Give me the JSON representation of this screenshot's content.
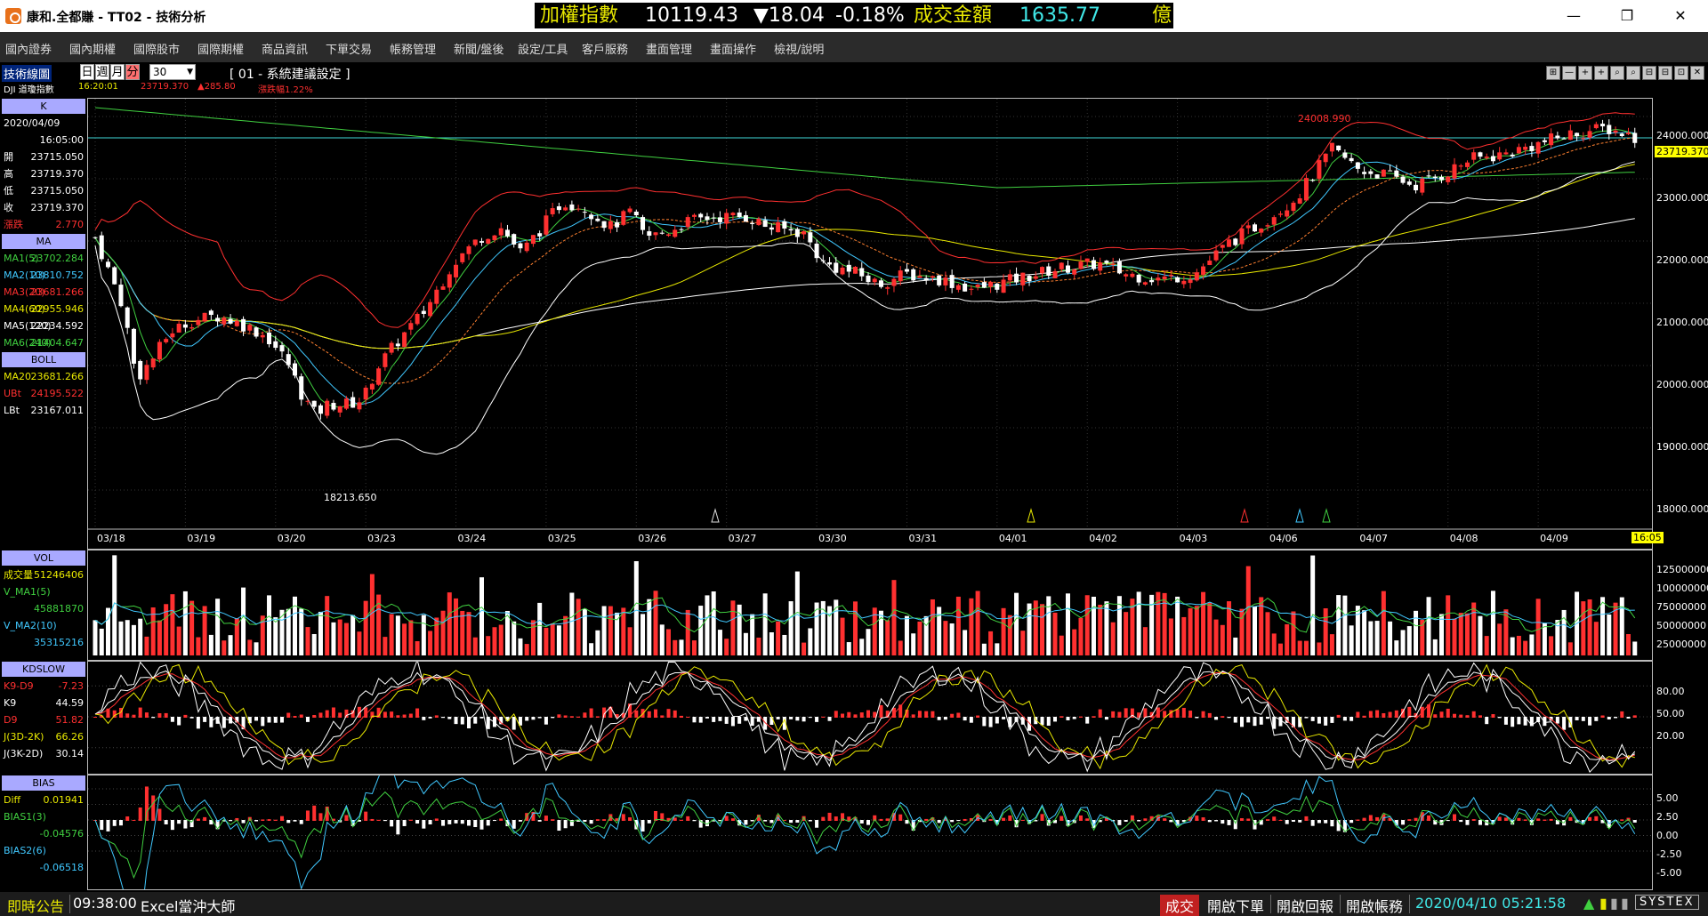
{
  "window": {
    "title": "康和.全都賺 - TT02 - 技術分析",
    "ticker_label": "加權指數",
    "ticker_value": "10119.43",
    "ticker_change": "▼18.04",
    "ticker_pct": "-0.18%",
    "turnover_label": "成交金額",
    "turnover_value": "1635.77",
    "turnover_unit": "億",
    "controls": [
      "—",
      "❐",
      "✕"
    ]
  },
  "menu": [
    "國內證券",
    "國內期權",
    "國際股市",
    "國際期權",
    "商品資訊",
    "下單交易",
    "帳務管理",
    "新聞/盤後",
    "設定/工具",
    "客戶服務",
    "畫面管理",
    "畫面操作",
    "檢視/說明"
  ],
  "toolbar": {
    "title": "技術線圖",
    "periods": [
      "日",
      "週",
      "月",
      "分"
    ],
    "active_period": "分",
    "interval": "30",
    "config": "[ 01 - 系統建議設定 ]",
    "symbol": "DJI 道瓊指數",
    "time": "16:20:01",
    "last": "23719.370",
    "change": "▲285.80",
    "change_pct": "漲跌幅1.22%",
    "tool_icons": [
      "⊞",
      "—",
      "+",
      "+",
      "⌕",
      "⌕",
      "⊟",
      "⊟",
      "⊡",
      "✕"
    ]
  },
  "side_k": {
    "header": "K",
    "date": "2020/04/09",
    "time": "16:05:00",
    "rows": [
      {
        "k": "開",
        "v": "23715.050",
        "color": "#ffffff"
      },
      {
        "k": "高",
        "v": "23719.370",
        "color": "#ffffff"
      },
      {
        "k": "低",
        "v": "23715.050",
        "color": "#ffffff"
      },
      {
        "k": "收",
        "v": "23719.370",
        "color": "#ffffff"
      },
      {
        "k": "漲跌",
        "v": "2.770",
        "color": "#ff3030"
      }
    ]
  },
  "side_ma": {
    "header": "MA",
    "rows": [
      {
        "k": "MA1(5)",
        "v": "23702.284",
        "color": "#40d040"
      },
      {
        "k": "MA2(10)",
        "v": "23810.752",
        "color": "#40c8ff"
      },
      {
        "k": "MA3(20)",
        "v": "23681.266",
        "color": "#ff3030"
      },
      {
        "k": "MA4(60)",
        "v": "22955.946",
        "color": "#e8e800"
      },
      {
        "k": "MA5(120)",
        "v": "22234.592",
        "color": "#ffffff"
      },
      {
        "k": "MA6(240)",
        "v": "21404.647",
        "color": "#40d040"
      }
    ]
  },
  "side_boll": {
    "header": "BOLL",
    "rows": [
      {
        "k": "MA20",
        "v": "23681.266",
        "color": "#e8e800"
      },
      {
        "k": "UBt",
        "v": "24195.522",
        "color": "#ff3030"
      },
      {
        "k": "LBt",
        "v": "23167.011",
        "color": "#ffffff"
      }
    ]
  },
  "side_vol": {
    "header": "VOL",
    "rows": [
      {
        "k": "成交量",
        "v": "51246406",
        "color": "#e8e800"
      },
      {
        "k": "V_MA1(5)",
        "v": "",
        "color": "#40d040"
      },
      {
        "k": "",
        "v": "45881870",
        "color": "#40d040"
      },
      {
        "k": "V_MA2(10)",
        "v": "",
        "color": "#40c8ff"
      },
      {
        "k": "",
        "v": "35315216",
        "color": "#40c8ff"
      }
    ]
  },
  "side_kd": {
    "header": "KDSLOW",
    "rows": [
      {
        "k": "K9-D9",
        "v": "-7.23",
        "color": "#ff3030"
      },
      {
        "k": "K9",
        "v": "44.59",
        "color": "#ffffff"
      },
      {
        "k": "D9",
        "v": "51.82",
        "color": "#ff3030"
      },
      {
        "k": "J(3D-2K)",
        "v": "66.26",
        "color": "#e8e800"
      },
      {
        "k": "J(3K-2D)",
        "v": "30.14",
        "color": "#ffffff"
      }
    ]
  },
  "side_bias": {
    "header": "BIAS",
    "rows": [
      {
        "k": "Diff",
        "v": "0.01941",
        "color": "#e8e800"
      },
      {
        "k": "BIAS1(3)",
        "v": "",
        "color": "#40d040"
      },
      {
        "k": "",
        "v": "-0.04576",
        "color": "#40d040"
      },
      {
        "k": "BIAS2(6)",
        "v": "",
        "color": "#40c8ff"
      },
      {
        "k": "",
        "v": "-0.06518",
        "color": "#40c8ff"
      }
    ]
  },
  "price_axis": [
    "24000.000",
    "23000.000",
    "22000.000",
    "21000.000",
    "20000.000",
    "19000.000",
    "18000.000"
  ],
  "price_markers": {
    "current": "23719.370",
    "high": "24008.990",
    "low": "18213.650",
    "time": "16:05"
  },
  "date_axis": [
    "03/18",
    "03/19",
    "03/20",
    "03/23",
    "03/24",
    "03/25",
    "03/26",
    "03/27",
    "03/30",
    "03/31",
    "04/01",
    "04/02",
    "04/03",
    "04/06",
    "04/07",
    "04/08",
    "04/09"
  ],
  "vol_axis": [
    "125000000",
    "100000000",
    "75000000",
    "50000000",
    "25000000"
  ],
  "kd_axis": [
    "80.00",
    "50.00",
    "20.00"
  ],
  "bias_axis": [
    "5.00",
    "2.50",
    "0.00",
    "-2.50",
    "-5.00"
  ],
  "colors": {
    "up": "#ff3030",
    "down": "#ffffff",
    "ma5": "#40d040",
    "ma10": "#40c8ff",
    "ma20": "#ff8030",
    "ma60": "#e8e800",
    "ma120": "#ffffff",
    "ma240": "#40d040",
    "boll_up": "#ff3030",
    "boll_low": "#ffffff",
    "hline": "#40d8d8"
  },
  "status": {
    "notice_label": "即時公告",
    "notice_time": "09:38:00",
    "notice_text": "Excel當沖大師",
    "trade_btn": "成交",
    "buttons": [
      "開啟下單",
      "開啟回報",
      "開啟帳務"
    ],
    "datetime": "2020/04/10 05:21:58",
    "brand": "SYSTEX"
  }
}
